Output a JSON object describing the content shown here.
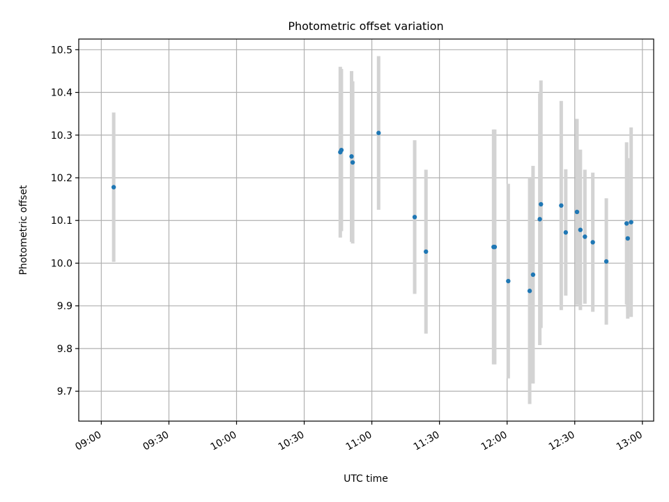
{
  "chart_data": {
    "type": "scatter",
    "title": "Photometric offset variation",
    "xlabel": "UTC time",
    "ylabel": "Photometric offset",
    "x_axis_kind": "time",
    "xlim": [
      "08:50",
      "13:05"
    ],
    "ylim": [
      9.63,
      10.525
    ],
    "x_ticks": [
      "09:00",
      "09:30",
      "10:00",
      "10:30",
      "11:00",
      "11:30",
      "12:00",
      "12:30",
      "13:00"
    ],
    "y_ticks": [
      9.7,
      9.8,
      9.9,
      10.0,
      10.1,
      10.2,
      10.3,
      10.4,
      10.5
    ],
    "y_tick_labels": [
      "9.7",
      "9.8",
      "9.9",
      "10.0",
      "10.1",
      "10.2",
      "10.3",
      "10.4",
      "10.5"
    ],
    "grid": true,
    "point_color": "#1f77b4",
    "errorbar_color": "#d3d3d3",
    "points": [
      {
        "t": "09:05:30",
        "y": 10.178,
        "err": 0.175
      },
      {
        "t": "10:46:00",
        "y": 10.26,
        "err": 0.2
      },
      {
        "t": "10:46:30",
        "y": 10.265,
        "err": 0.19
      },
      {
        "t": "10:51:00",
        "y": 10.25,
        "err": 0.2
      },
      {
        "t": "10:51:30",
        "y": 10.236,
        "err": 0.19
      },
      {
        "t": "11:03:00",
        "y": 10.305,
        "err": 0.18
      },
      {
        "t": "11:19:00",
        "y": 10.108,
        "err": 0.18
      },
      {
        "t": "11:24:00",
        "y": 10.027,
        "err": 0.192
      },
      {
        "t": "11:54:00",
        "y": 10.038,
        "err": 0.275
      },
      {
        "t": "11:54:30",
        "y": 10.038,
        "err": 0.275
      },
      {
        "t": "12:00:30",
        "y": 9.958,
        "err": 0.228
      },
      {
        "t": "12:10:00",
        "y": 9.935,
        "err": 0.265
      },
      {
        "t": "12:11:30",
        "y": 9.973,
        "err": 0.255
      },
      {
        "t": "12:14:30",
        "y": 10.103,
        "err": 0.295
      },
      {
        "t": "12:15:00",
        "y": 10.138,
        "err": 0.29
      },
      {
        "t": "12:24:00",
        "y": 10.135,
        "err": 0.245
      },
      {
        "t": "12:26:00",
        "y": 10.072,
        "err": 0.148
      },
      {
        "t": "12:31:00",
        "y": 10.12,
        "err": 0.218
      },
      {
        "t": "12:32:30",
        "y": 10.078,
        "err": 0.188
      },
      {
        "t": "12:34:30",
        "y": 10.062,
        "err": 0.157
      },
      {
        "t": "12:38:00",
        "y": 10.049,
        "err": 0.163
      },
      {
        "t": "12:44:00",
        "y": 10.004,
        "err": 0.148
      },
      {
        "t": "12:53:00",
        "y": 10.093,
        "err": 0.19
      },
      {
        "t": "12:53:30",
        "y": 10.058,
        "err": 0.188
      },
      {
        "t": "12:55:00",
        "y": 10.096,
        "err": 0.222
      }
    ]
  }
}
